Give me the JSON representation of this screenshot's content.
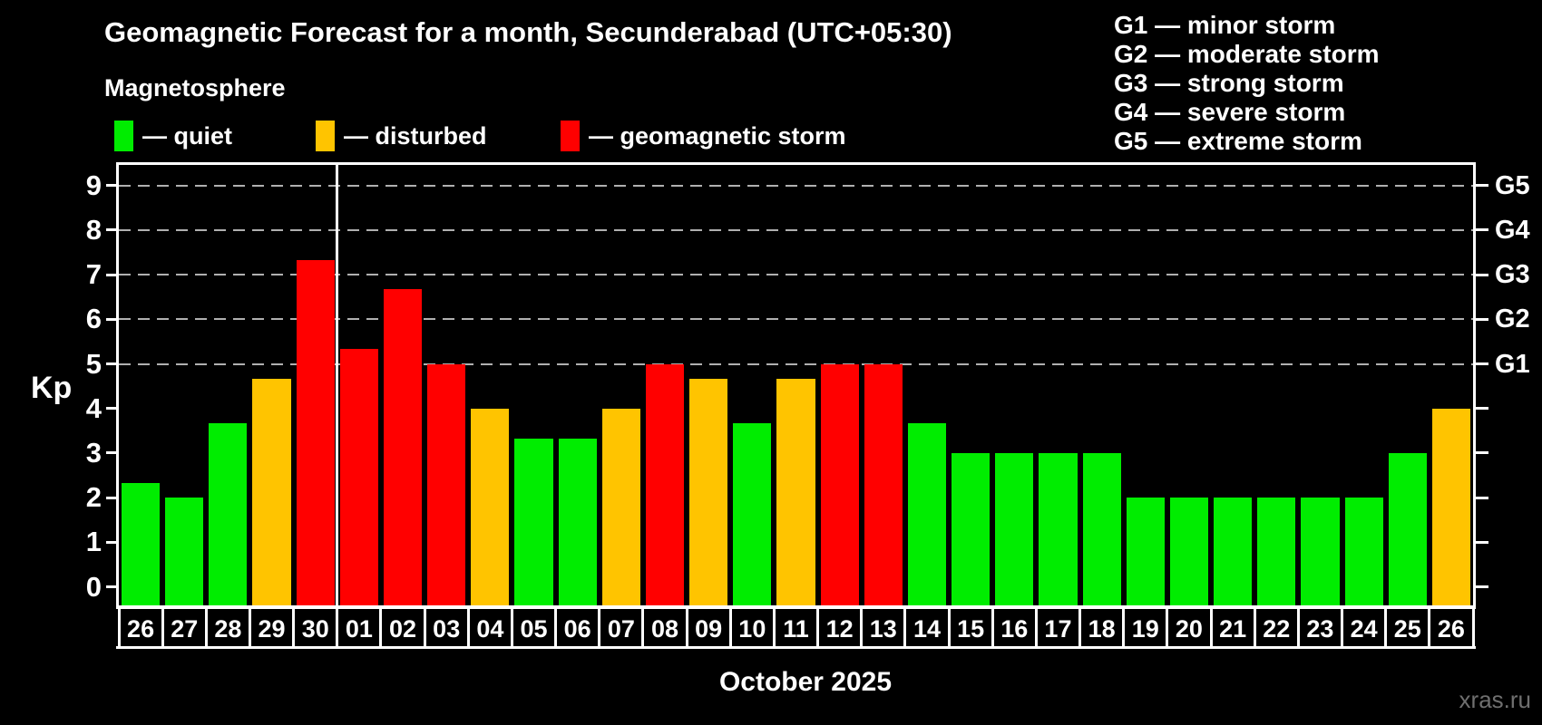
{
  "header": {
    "title": "Geomagnetic Forecast for a month, Secunderabad (UTC+05:30)",
    "subtitle": "Magnetosphere"
  },
  "legend": {
    "items": [
      {
        "name": "quiet",
        "label": "— quiet",
        "color": "#00ed00"
      },
      {
        "name": "disturbed",
        "label": "— disturbed",
        "color": "#ffc400"
      },
      {
        "name": "storm",
        "label": "— geomagnetic storm",
        "color": "#ff0000"
      }
    ]
  },
  "g_scale": {
    "items": [
      "G1 — minor storm",
      "G2 — moderate storm",
      "G3 — strong storm",
      "G4 — severe storm",
      "G5 — extreme storm"
    ]
  },
  "chart_data": {
    "type": "bar",
    "ylabel": "Kp",
    "xlabel": "October 2025",
    "categories": [
      "26",
      "27",
      "28",
      "29",
      "30",
      "01",
      "02",
      "03",
      "04",
      "05",
      "06",
      "07",
      "08",
      "09",
      "10",
      "11",
      "12",
      "13",
      "14",
      "15",
      "16",
      "17",
      "18",
      "19",
      "20",
      "21",
      "22",
      "23",
      "24",
      "25",
      "26"
    ],
    "values": [
      2.33,
      2,
      3.67,
      4.67,
      7.33,
      5.33,
      6.67,
      5,
      4,
      3.33,
      3.33,
      4,
      5,
      4.67,
      3.67,
      4.67,
      5,
      5,
      3.67,
      3,
      3,
      3,
      3,
      2,
      2,
      2,
      2,
      2,
      2,
      3,
      4
    ],
    "statuses": [
      "quiet",
      "quiet",
      "quiet",
      "disturbed",
      "storm",
      "storm",
      "storm",
      "storm",
      "disturbed",
      "quiet",
      "quiet",
      "disturbed",
      "storm",
      "disturbed",
      "quiet",
      "disturbed",
      "storm",
      "storm",
      "quiet",
      "quiet",
      "quiet",
      "quiet",
      "quiet",
      "quiet",
      "quiet",
      "quiet",
      "quiet",
      "quiet",
      "quiet",
      "quiet",
      "disturbed"
    ],
    "status_colors": {
      "quiet": "#00ed00",
      "disturbed": "#ffc400",
      "storm": "#ff0000"
    },
    "yticks": [
      0,
      1,
      2,
      3,
      4,
      5,
      6,
      7,
      8,
      9
    ],
    "ylim": [
      -0.45,
      9.45
    ],
    "grid": "dashed-horizontal",
    "gridlines": [
      5,
      6,
      7,
      8,
      9
    ],
    "right_axis": [
      {
        "label": "G5",
        "value": 9
      },
      {
        "label": "G4",
        "value": 8
      },
      {
        "label": "G3",
        "value": 7
      },
      {
        "label": "G2",
        "value": 6
      },
      {
        "label": "G1",
        "value": 5
      }
    ],
    "month_divider_after_index": 4,
    "legend_position": "top-left"
  },
  "watermark": "xras.ru"
}
